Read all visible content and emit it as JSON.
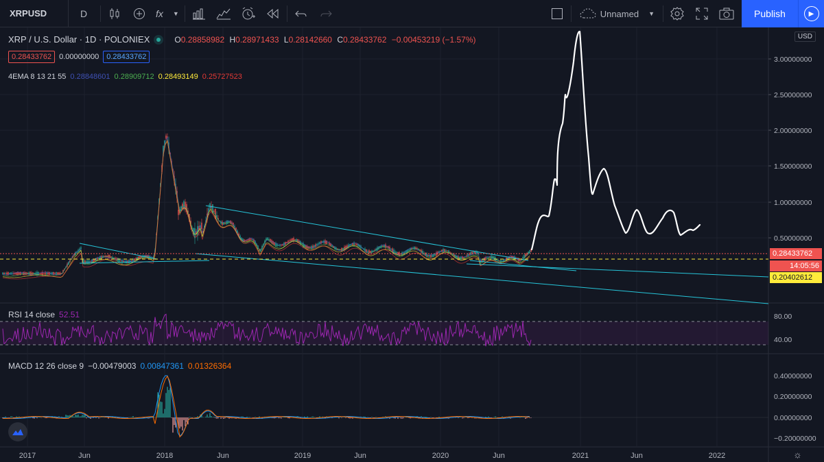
{
  "toolbar": {
    "symbol": "XRPUSD",
    "interval": "D",
    "fx": "fx",
    "layout_name": "Unnamed",
    "publish": "Publish"
  },
  "legend": {
    "title": "XRP / U.S. Dollar · 1D · POLONIEX",
    "open_k": "O",
    "open": "0.28858982",
    "high_k": "H",
    "high": "0.28971433",
    "low_k": "L",
    "low": "0.28142660",
    "close_k": "C",
    "close": "0.28433762",
    "change": "−0.00453219 (−1.57%)",
    "bid": "0.28433762",
    "spread": "0.00000000",
    "ask": "0.28433762"
  },
  "ema": {
    "label": "4EMA 8 13 21 55",
    "v1": "0.28848601",
    "v2": "0.28909712",
    "v3": "0.28493149",
    "v4": "0.25727523",
    "c1": "#3f51b5",
    "c2": "#4caf50",
    "c3": "#ffeb3b",
    "c4": "#e53935"
  },
  "price_axis": {
    "currency": "USD",
    "ticks": [
      "3.00000000",
      "2.50000000",
      "2.00000000",
      "1.50000000",
      "1.00000000",
      "0.50000000"
    ],
    "last_price": "0.28433762",
    "countdown": "14:05:56",
    "hline_price": "0.20402612"
  },
  "rsi": {
    "label": "RSI 14 close",
    "value": "52.51",
    "ticks": [
      "80.00",
      "40.00"
    ],
    "color": "#9c27b0"
  },
  "macd": {
    "label": "MACD 12 26 close 9",
    "hist": "−0.00479003",
    "macd": "0.00847361",
    "signal": "0.01326364",
    "ticks": [
      "0.40000000",
      "0.20000000",
      "0.00000000",
      "−0.20000000"
    ]
  },
  "time_axis": [
    "2017",
    "Jun",
    "2018",
    "Jun",
    "2019",
    "Jun",
    "2020",
    "Jun",
    "2021",
    "Jun",
    "2022"
  ],
  "colors": {
    "bg": "#131722",
    "grid": "#1e222d",
    "up": "#26a69a",
    "down": "#ef5350",
    "trend": "#26c6da",
    "accent": "#2962ff"
  }
}
